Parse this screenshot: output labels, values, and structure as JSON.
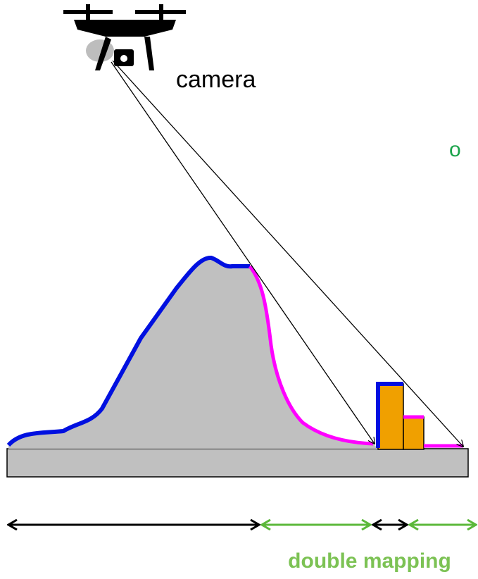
{
  "labels": {
    "camera": "camera",
    "side_label": "o",
    "double_mapping": "double mapping"
  }
}
